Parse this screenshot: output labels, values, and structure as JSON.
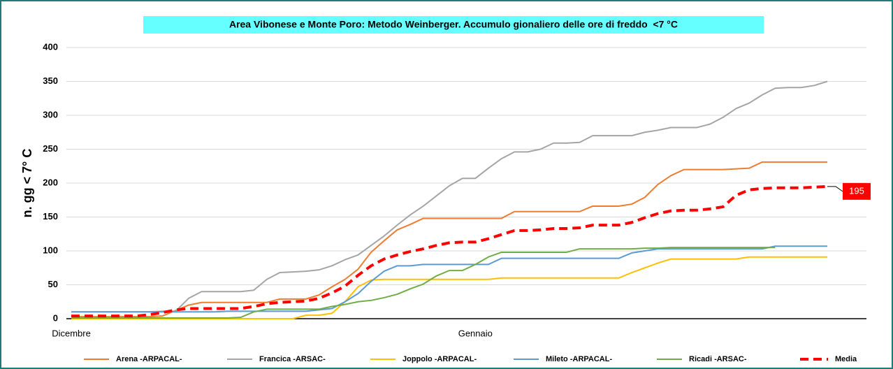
{
  "chart_data": {
    "type": "line",
    "title": "Area Vibonese e Monte Poro: Metodo Weinberger. Accumulo gionaliero delle ore di freddo  <7 °C",
    "y_label": "n. gg < 7° C",
    "categories": [
      "Dicembre",
      null,
      null,
      null,
      null,
      null,
      null,
      null,
      null,
      null,
      null,
      null,
      null,
      null,
      null,
      null,
      null,
      null,
      null,
      null,
      null,
      null,
      null,
      null,
      null,
      null,
      null,
      null,
      null,
      null,
      null,
      "Gennaio",
      null,
      null,
      null,
      null,
      null,
      null,
      null,
      null,
      null,
      null,
      null,
      null,
      null,
      null,
      null,
      null,
      null,
      null,
      null,
      null,
      null,
      null,
      null,
      null,
      null,
      null,
      null
    ],
    "ylim": [
      0,
      400
    ],
    "yticks": [
      0,
      50,
      100,
      150,
      200,
      250,
      300,
      350,
      400
    ],
    "grid": true,
    "legend": "bottom",
    "series": [
      {
        "name": "Arena -ARPACAL-",
        "color": "#ed7d31",
        "values": [
          3,
          3,
          3,
          3,
          3,
          3,
          3,
          4,
          12,
          20,
          24,
          24,
          24,
          24,
          24,
          24,
          29,
          29,
          29,
          35,
          47,
          58,
          73,
          98,
          115,
          131,
          139,
          148,
          148,
          148,
          148,
          148,
          148,
          148,
          158,
          158,
          158,
          158,
          158,
          158,
          166,
          166,
          166,
          169,
          179,
          198,
          211,
          220,
          220,
          220,
          220,
          221,
          222,
          231,
          231,
          231,
          231,
          231,
          231
        ]
      },
      {
        "name": "Francica -ARSAC-",
        "color": "#a5a5a5",
        "values": [
          10,
          10,
          10,
          10,
          10,
          10,
          10,
          11,
          11,
          30,
          40,
          40,
          40,
          40,
          42,
          58,
          68,
          69,
          70,
          72,
          78,
          87,
          94,
          108,
          122,
          138,
          153,
          166,
          181,
          196,
          207,
          207,
          222,
          236,
          246,
          246,
          250,
          259,
          259,
          260,
          270,
          270,
          270,
          270,
          275,
          278,
          282,
          282,
          282,
          287,
          297,
          310,
          318,
          330,
          340,
          341,
          341,
          344,
          350
        ]
      },
      {
        "name": "Joppolo  -ARPACAL-",
        "color": "#ffc000",
        "values": [
          0,
          0,
          0,
          0,
          0,
          0,
          0,
          0,
          0,
          0,
          0,
          0,
          0,
          0,
          0,
          0,
          0,
          0,
          5,
          5,
          8,
          25,
          47,
          57,
          58,
          58,
          58,
          58,
          58,
          58,
          58,
          58,
          58,
          60,
          60,
          60,
          60,
          60,
          60,
          60,
          60,
          60,
          60,
          68,
          75,
          82,
          88,
          88,
          88,
          88,
          88,
          88,
          91,
          91,
          91,
          91,
          91,
          91,
          91
        ]
      },
      {
        "name": "Mileto -ARPACAL-",
        "color": "#5b9bd5",
        "values": [
          10,
          10,
          10,
          10,
          10,
          10,
          10,
          10,
          10,
          10,
          10,
          10,
          11,
          11,
          11,
          11,
          11,
          11,
          11,
          13,
          15,
          25,
          37,
          55,
          70,
          78,
          78,
          80,
          80,
          80,
          80,
          80,
          80,
          89,
          89,
          89,
          89,
          89,
          89,
          89,
          89,
          89,
          89,
          97,
          100,
          103,
          103,
          103,
          103,
          103,
          103,
          103,
          103,
          103,
          107,
          107,
          107,
          107,
          107
        ]
      },
      {
        "name": "Ricadi -ARSAC-",
        "color": "#70ad47",
        "values": [
          1,
          1,
          1,
          1,
          1,
          1,
          1,
          1,
          1,
          1,
          1,
          1,
          1,
          2,
          10,
          14,
          14,
          14,
          14,
          14,
          18,
          21,
          25,
          27,
          31,
          36,
          44,
          51,
          63,
          71,
          71,
          80,
          91,
          98,
          98,
          98,
          98,
          98,
          98,
          103,
          103,
          103,
          103,
          103,
          104,
          104,
          105,
          105,
          105,
          105,
          105,
          105,
          105,
          105,
          105,
          null,
          null,
          null,
          null
        ]
      },
      {
        "name": "Media",
        "color": "#ff0000",
        "dashed": true,
        "label_last": true,
        "values": [
          4,
          4,
          4,
          4,
          4,
          4,
          6,
          9,
          13,
          15,
          15,
          15,
          15,
          15,
          18,
          22,
          24,
          25,
          26,
          30,
          38,
          48,
          64,
          78,
          88,
          94,
          99,
          103,
          108,
          112,
          113,
          113,
          118,
          124,
          130,
          130,
          131,
          133,
          133,
          134,
          138,
          138,
          138,
          142,
          149,
          155,
          159,
          160,
          160,
          162,
          165,
          182,
          190,
          192,
          193,
          193,
          193,
          194,
          195
        ]
      }
    ]
  }
}
